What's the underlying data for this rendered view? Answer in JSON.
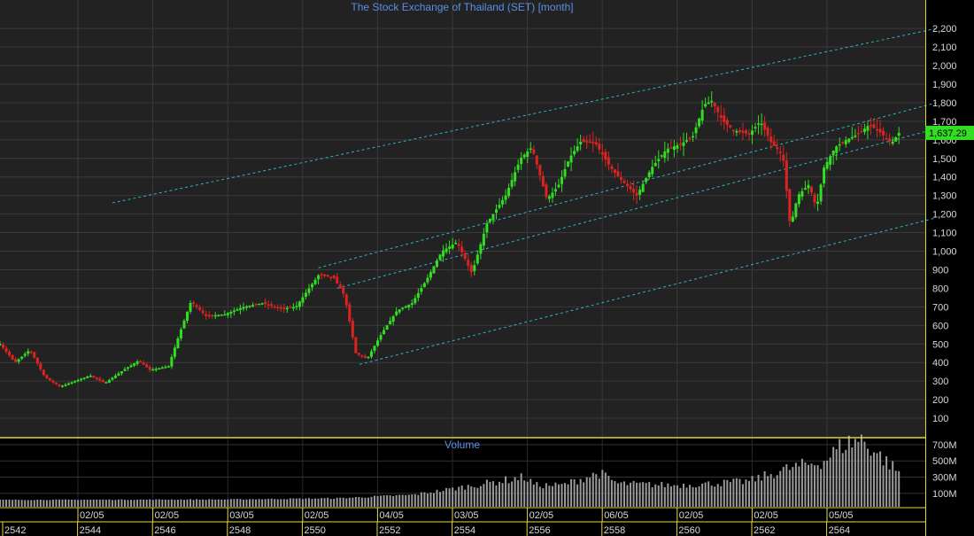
{
  "chart": {
    "title": "The Stock Exchange of Thailand (SET) [month]",
    "volume_title": "Volume",
    "last_price_label": "1,637.29"
  },
  "colors": {
    "background": "#000000",
    "plot_background": "#222222",
    "grid": "#3a3a3a",
    "up_candle": "#33dd22",
    "down_candle": "#dd2222",
    "trend_channel": "#2ab5c8",
    "title": "#5b8fe8",
    "axis_text": "#d8d8d8",
    "last_price_box": "#33dd22",
    "panel_divider": "#e8d840",
    "volume_bar": "#9a9a9a"
  },
  "chart_data": [
    {
      "type": "candlestick",
      "title": "The Stock Exchange of Thailand (SET) [month]",
      "timeframe": "month",
      "ylim": [
        0,
        2250
      ],
      "y_ticks": [
        "100",
        "200",
        "300",
        "400",
        "500",
        "600",
        "700",
        "800",
        "900",
        "1,000",
        "1,100",
        "1,200",
        "1,300",
        "1,400",
        "1,500",
        "1,600",
        "1,700",
        "1,800",
        "1,900",
        "2,000",
        "2,100",
        "2,200"
      ],
      "x_month_labels": [
        "02/05",
        "02/05",
        "03/05",
        "02/05",
        "04/05",
        "03/05",
        "02/05",
        "06/05",
        "02/05",
        "02/05",
        "05/05"
      ],
      "x_year_labels": [
        "2542",
        "2544",
        "2546",
        "2548",
        "2550",
        "2552",
        "2554",
        "2556",
        "2558",
        "2560",
        "2562",
        "2564"
      ],
      "last_close": 1637.29,
      "close_path": [
        [
          2542.0,
          500
        ],
        [
          2542.4,
          400
        ],
        [
          2542.8,
          470
        ],
        [
          2543.2,
          320
        ],
        [
          2543.6,
          270
        ],
        [
          2544.0,
          300
        ],
        [
          2544.4,
          330
        ],
        [
          2544.8,
          290
        ],
        [
          2545.3,
          360
        ],
        [
          2545.7,
          410
        ],
        [
          2546.0,
          360
        ],
        [
          2546.5,
          380
        ],
        [
          2546.8,
          560
        ],
        [
          2547.1,
          730
        ],
        [
          2547.5,
          650
        ],
        [
          2548.0,
          660
        ],
        [
          2548.5,
          700
        ],
        [
          2549.0,
          720
        ],
        [
          2549.5,
          690
        ],
        [
          2549.9,
          700
        ],
        [
          2550.5,
          870
        ],
        [
          2550.9,
          860
        ],
        [
          2551.2,
          760
        ],
        [
          2551.5,
          450
        ],
        [
          2551.8,
          420
        ],
        [
          2552.2,
          560
        ],
        [
          2552.6,
          680
        ],
        [
          2553.0,
          720
        ],
        [
          2553.4,
          850
        ],
        [
          2553.8,
          1000
        ],
        [
          2554.2,
          1050
        ],
        [
          2554.6,
          880
        ],
        [
          2555.0,
          1150
        ],
        [
          2555.5,
          1300
        ],
        [
          2555.9,
          1500
        ],
        [
          2556.2,
          1560
        ],
        [
          2556.4,
          1420
        ],
        [
          2556.6,
          1280
        ],
        [
          2556.9,
          1350
        ],
        [
          2557.2,
          1500
        ],
        [
          2557.5,
          1590
        ],
        [
          2557.9,
          1580
        ],
        [
          2558.3,
          1450
        ],
        [
          2558.6,
          1380
        ],
        [
          2559.0,
          1300
        ],
        [
          2559.4,
          1450
        ],
        [
          2559.8,
          1550
        ],
        [
          2560.2,
          1580
        ],
        [
          2560.5,
          1620
        ],
        [
          2560.8,
          1790
        ],
        [
          2561.0,
          1810
        ],
        [
          2561.3,
          1700
        ],
        [
          2561.6,
          1650
        ],
        [
          2562.0,
          1630
        ],
        [
          2562.3,
          1700
        ],
        [
          2562.6,
          1580
        ],
        [
          2562.9,
          1520
        ],
        [
          2563.1,
          1130
        ],
        [
          2563.3,
          1300
        ],
        [
          2563.6,
          1360
        ],
        [
          2563.8,
          1230
        ],
        [
          2564.0,
          1450
        ],
        [
          2564.3,
          1560
        ],
        [
          2564.6,
          1600
        ],
        [
          2564.9,
          1630
        ],
        [
          2565.2,
          1680
        ],
        [
          2565.5,
          1640
        ],
        [
          2565.8,
          1580
        ],
        [
          2566.0,
          1637.29
        ]
      ],
      "trend_channels": [
        {
          "start": [
            2550.5,
            910
          ],
          "end": [
            2567.0,
            1800
          ]
        },
        {
          "start": [
            2551.0,
            800
          ],
          "end": [
            2567.0,
            1660
          ]
        },
        {
          "start": [
            2551.6,
            390
          ],
          "end": [
            2567.0,
            1180
          ]
        },
        {
          "start": [
            2545.0,
            1260
          ],
          "end": [
            2567.0,
            2200
          ]
        }
      ]
    },
    {
      "type": "bar",
      "title": "Volume",
      "y_ticks": [
        "100M",
        "300M",
        "500M",
        "700M"
      ],
      "ylim": [
        0,
        820
      ],
      "volume_path": [
        [
          2542.0,
          20
        ],
        [
          2548.0,
          25
        ],
        [
          2551.0,
          40
        ],
        [
          2553.0,
          80
        ],
        [
          2554.0,
          150
        ],
        [
          2556.0,
          300
        ],
        [
          2556.3,
          200
        ],
        [
          2557.0,
          200
        ],
        [
          2558.0,
          350
        ],
        [
          2558.5,
          220
        ],
        [
          2560.0,
          200
        ],
        [
          2561.0,
          220
        ],
        [
          2562.0,
          250
        ],
        [
          2563.0,
          400
        ],
        [
          2564.0,
          500
        ],
        [
          2564.5,
          700
        ],
        [
          2565.0,
          770
        ],
        [
          2565.5,
          560
        ],
        [
          2566.0,
          360
        ]
      ]
    }
  ]
}
